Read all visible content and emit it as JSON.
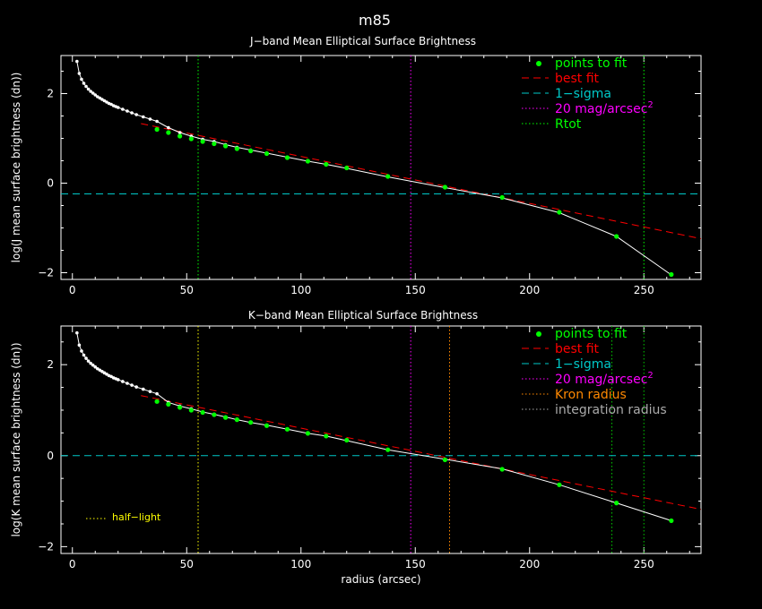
{
  "title": "m85",
  "colors": {
    "background": "#000000",
    "axes": "#ffffff",
    "profile": "#ffffff",
    "fit_points": "#00ff00",
    "best_fit": "#ff0000",
    "sigma": "#00c8c8",
    "mag20": "#ff00ff",
    "rtot": "#00ff00",
    "kron": "#ff8800",
    "integration": "#00cc00",
    "half_light": "#ffff00"
  },
  "chart_data": [
    {
      "type": "line",
      "title": "J−band Mean Elliptical Surface Brightness",
      "ylabel": "log(J mean surface brightness (dn))",
      "xlabel": "",
      "xlim": [
        -5,
        275
      ],
      "ylim": [
        -2.15,
        2.85
      ],
      "xticks": [
        0,
        50,
        100,
        150,
        200,
        250
      ],
      "yticks": [
        -2,
        0,
        2
      ],
      "xticklabels": [
        "0",
        "50",
        "100",
        "150",
        "200",
        "250"
      ],
      "yticklabels": [
        "−2",
        "0",
        "2"
      ],
      "legend": {
        "placement": "top-right",
        "entries": [
          {
            "label": "points to fit",
            "style": "dot",
            "color": "#00ff00"
          },
          {
            "label": "best fit",
            "style": "dash",
            "color": "#ff0000"
          },
          {
            "label": "1−sigma",
            "style": "dash",
            "color": "#00c8c8"
          },
          {
            "label": "20 mag/arcsec",
            "sup": "2",
            "style": "dot",
            "color": "#ff00ff"
          },
          {
            "label": "Rtot",
            "style": "dot",
            "color": "#00ff00"
          }
        ]
      },
      "profile": {
        "x": [
          2,
          3,
          4,
          5,
          6,
          7,
          8,
          9,
          10,
          11,
          12,
          13,
          14,
          15,
          16,
          17,
          18,
          19,
          20,
          22,
          24,
          26,
          28,
          31,
          34,
          37,
          42,
          47,
          52,
          57,
          62,
          67,
          72,
          78,
          85,
          94,
          103,
          111,
          120,
          138,
          163,
          188,
          213,
          238,
          262
        ],
        "y": [
          2.72,
          2.45,
          2.32,
          2.23,
          2.16,
          2.1,
          2.05,
          2.01,
          1.97,
          1.93,
          1.9,
          1.87,
          1.84,
          1.81,
          1.78,
          1.76,
          1.73,
          1.71,
          1.69,
          1.65,
          1.61,
          1.57,
          1.53,
          1.48,
          1.43,
          1.38,
          1.24,
          1.13,
          1.05,
          0.98,
          0.93,
          0.86,
          0.8,
          0.74,
          0.67,
          0.58,
          0.49,
          0.42,
          0.33,
          0.14,
          -0.1,
          -0.33,
          -0.66,
          -1.19,
          -2.05
        ]
      },
      "fit_points": {
        "x": [
          37,
          42,
          47,
          52,
          57,
          62,
          67,
          72,
          78,
          85,
          94,
          103,
          111,
          120,
          138,
          163,
          188,
          213,
          238,
          262
        ],
        "y": [
          1.2,
          1.13,
          1.05,
          0.99,
          0.93,
          0.88,
          0.83,
          0.77,
          0.72,
          0.66,
          0.57,
          0.49,
          0.42,
          0.34,
          0.15,
          -0.09,
          -0.32,
          -0.65,
          -1.19,
          -2.04
        ]
      },
      "best_fit": {
        "x": [
          30,
          275
        ],
        "y": [
          1.33,
          -1.24
        ]
      },
      "sigma_level": -0.24,
      "vlines": [
        {
          "x": 55,
          "kind": "rtot"
        },
        {
          "x": 148,
          "kind": "mag20"
        },
        {
          "x": 250,
          "kind": "rtot"
        }
      ],
      "annotations": []
    },
    {
      "type": "line",
      "title": "K−band Mean Elliptical Surface Brightness",
      "ylabel": "log(K mean surface brightness (dn))",
      "xlabel": "radius (arcsec)",
      "xlim": [
        -5,
        275
      ],
      "ylim": [
        -2.15,
        2.85
      ],
      "xticks": [
        0,
        50,
        100,
        150,
        200,
        250
      ],
      "yticks": [
        -2,
        0,
        2
      ],
      "xticklabels": [
        "0",
        "50",
        "100",
        "150",
        "200",
        "250"
      ],
      "yticklabels": [
        "−2",
        "0",
        "2"
      ],
      "legend": {
        "placement": "top-right",
        "entries": [
          {
            "label": "points to fit",
            "style": "dot",
            "color": "#00ff00"
          },
          {
            "label": "best fit",
            "style": "dash",
            "color": "#ff0000"
          },
          {
            "label": "1−sigma",
            "style": "dash",
            "color": "#00c8c8"
          },
          {
            "label": "20 mag/arcsec",
            "sup": "2",
            "style": "dot",
            "color": "#ff00ff"
          },
          {
            "label": "Kron radius",
            "style": "dot",
            "color": "#ff8800"
          },
          {
            "label": "integration radius",
            "style": "dot",
            "color": "#aaaaaa"
          }
        ]
      },
      "profile": {
        "x": [
          2,
          3,
          4,
          5,
          6,
          7,
          8,
          9,
          10,
          11,
          12,
          13,
          14,
          15,
          16,
          17,
          18,
          19,
          20,
          22,
          24,
          26,
          28,
          31,
          34,
          37,
          42,
          47,
          52,
          57,
          62,
          67,
          72,
          78,
          85,
          94,
          103,
          111,
          120,
          138,
          163,
          188,
          213,
          238,
          262
        ],
        "y": [
          2.7,
          2.43,
          2.3,
          2.21,
          2.14,
          2.08,
          2.03,
          1.99,
          1.95,
          1.91,
          1.88,
          1.85,
          1.82,
          1.79,
          1.76,
          1.74,
          1.71,
          1.69,
          1.67,
          1.63,
          1.59,
          1.55,
          1.51,
          1.46,
          1.41,
          1.36,
          1.17,
          1.09,
          1.03,
          0.96,
          0.91,
          0.85,
          0.79,
          0.73,
          0.67,
          0.58,
          0.49,
          0.43,
          0.33,
          0.13,
          -0.08,
          -0.29,
          -0.64,
          -1.04,
          -1.43
        ]
      },
      "fit_points": {
        "x": [
          37,
          42,
          47,
          52,
          57,
          62,
          67,
          72,
          78,
          85,
          94,
          103,
          111,
          120,
          138,
          163,
          188,
          213,
          238,
          262
        ],
        "y": [
          1.19,
          1.13,
          1.06,
          1.0,
          0.95,
          0.9,
          0.84,
          0.79,
          0.73,
          0.66,
          0.58,
          0.49,
          0.43,
          0.34,
          0.13,
          -0.09,
          -0.3,
          -0.64,
          -1.04,
          -1.43
        ]
      },
      "best_fit": {
        "x": [
          30,
          275
        ],
        "y": [
          1.32,
          -1.18
        ]
      },
      "sigma_level": 0.0,
      "vlines": [
        {
          "x": 55,
          "kind": "half_light"
        },
        {
          "x": 148,
          "kind": "mag20"
        },
        {
          "x": 165,
          "kind": "kron"
        },
        {
          "x": 236,
          "kind": "integration"
        },
        {
          "x": 250,
          "kind": "integration"
        }
      ],
      "annotations": [
        {
          "text": "half−light",
          "style": "dot",
          "color": "#ffff00",
          "placement": "bottom-left"
        }
      ]
    }
  ]
}
